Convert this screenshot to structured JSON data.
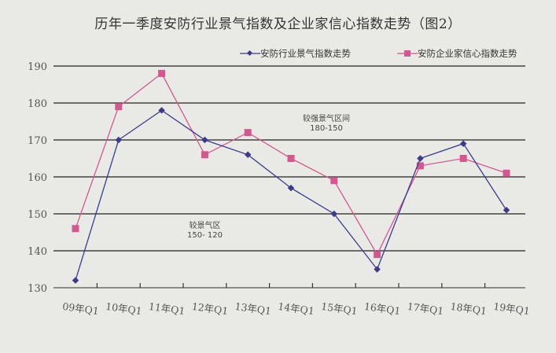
{
  "chart_data": {
    "type": "line",
    "title": "历年一季度安防行业景气指数及企业家信心指数走势（图2）",
    "categories": [
      "09年Q1",
      "10年Q1",
      "11年Q1",
      "12年Q1",
      "13年Q1",
      "14年Q1",
      "15年Q1",
      "16年Q1",
      "17年Q1",
      "18年Q1",
      "19年Q1"
    ],
    "series": [
      {
        "name": "安防行业景气指数走势",
        "color": "#3b3a8c",
        "marker": "diamond",
        "values": [
          132,
          170,
          178,
          170,
          166,
          157,
          150,
          135,
          165,
          169,
          151
        ]
      },
      {
        "name": "安防企业家信心指数走势",
        "color": "#d2588f",
        "marker": "square",
        "values": [
          146,
          179,
          188,
          166,
          172,
          165,
          159,
          139,
          163,
          165,
          161
        ]
      }
    ],
    "ylim": [
      130,
      190
    ],
    "yticks": [
      130,
      140,
      150,
      160,
      170,
      180,
      190
    ],
    "grid": true,
    "legend_position": "top-right",
    "annotations": [
      {
        "line1": "较强景气区间",
        "line2": "180-150"
      },
      {
        "line1": "较景气区",
        "line2": "150- 120"
      }
    ]
  }
}
